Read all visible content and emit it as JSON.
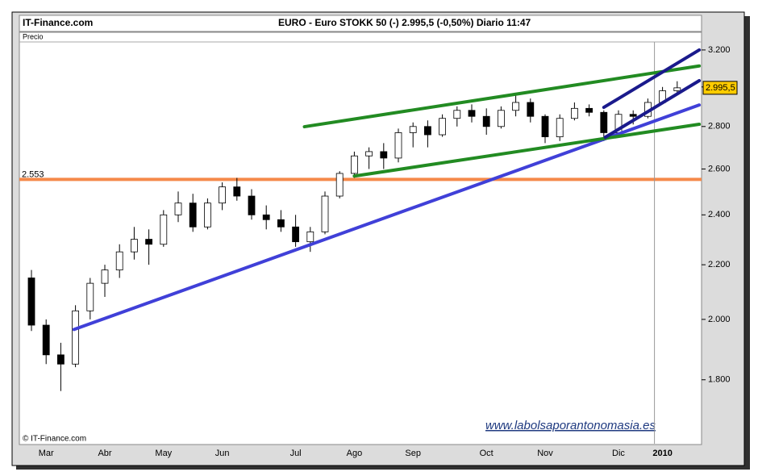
{
  "chart_data": {
    "type": "candlestick",
    "site": "IT-Finance.com",
    "title": "EURO - Euro STOKK 50  (-)   2.995,5 (-0,50%)   Diario  11:47",
    "panel_label": "Precio",
    "copyright": "© IT-Finance.com",
    "watermark": "www.labolsaporantonomasia.es",
    "categories": [
      null,
      "Mar",
      null,
      null,
      null,
      "Abr",
      null,
      null,
      null,
      "May",
      null,
      null,
      null,
      "Jun",
      null,
      null,
      null,
      null,
      "Jul",
      null,
      null,
      null,
      "Ago",
      null,
      null,
      null,
      "Sep",
      null,
      null,
      null,
      null,
      "Oct",
      null,
      null,
      null,
      "Nov",
      null,
      null,
      null,
      null,
      "Dic",
      null,
      null,
      "2010",
      null
    ],
    "open": [
      2150,
      1980,
      1880,
      1850,
      2030,
      2130,
      2180,
      2250,
      2300,
      2280,
      2400,
      2450,
      2350,
      2450,
      2520,
      2480,
      2400,
      2380,
      2350,
      2290,
      2330,
      2480,
      2580,
      2660,
      2680,
      2650,
      2770,
      2800,
      2760,
      2840,
      2880,
      2850,
      2800,
      2880,
      2920,
      2850,
      2750,
      2840,
      2890,
      2870,
      2770,
      2860,
      2850,
      2920,
      2980
    ],
    "high": [
      2180,
      2000,
      1920,
      2050,
      2150,
      2200,
      2280,
      2350,
      2340,
      2420,
      2500,
      2490,
      2470,
      2540,
      2560,
      2510,
      2440,
      2420,
      2400,
      2350,
      2500,
      2590,
      2680,
      2700,
      2720,
      2790,
      2820,
      2830,
      2860,
      2900,
      2910,
      2890,
      2900,
      2960,
      2940,
      2860,
      2860,
      2920,
      2910,
      2880,
      2880,
      2880,
      2940,
      3000,
      3030
    ],
    "low": [
      1960,
      1850,
      1765,
      1840,
      2000,
      2080,
      2150,
      2220,
      2200,
      2270,
      2370,
      2330,
      2340,
      2420,
      2460,
      2380,
      2340,
      2330,
      2270,
      2250,
      2320,
      2470,
      2560,
      2600,
      2600,
      2630,
      2700,
      2700,
      2750,
      2800,
      2820,
      2760,
      2790,
      2850,
      2820,
      2720,
      2730,
      2830,
      2850,
      2730,
      2760,
      2810,
      2840,
      2910,
      2970
    ],
    "close": [
      1980,
      1880,
      1850,
      2030,
      2130,
      2180,
      2250,
      2300,
      2280,
      2400,
      2450,
      2350,
      2450,
      2520,
      2480,
      2400,
      2380,
      2350,
      2290,
      2330,
      2480,
      2580,
      2660,
      2680,
      2650,
      2770,
      2800,
      2760,
      2840,
      2880,
      2850,
      2800,
      2880,
      2920,
      2850,
      2750,
      2840,
      2890,
      2870,
      2770,
      2860,
      2850,
      2920,
      2980,
      2995.5
    ],
    "up_color": "#ffffff",
    "down_color": "#000000",
    "log_scale": true,
    "ylim": [
      1610,
      3245
    ],
    "yticks": [
      {
        "value": 1800,
        "label": "1.800"
      },
      {
        "value": 2000,
        "label": "2.000"
      },
      {
        "value": 2200,
        "label": "2.200"
      },
      {
        "value": 2400,
        "label": "2.400"
      },
      {
        "value": 2600,
        "label": "2.600"
      },
      {
        "value": 2800,
        "label": "2.800"
      },
      {
        "value": 3000,
        "label": "3.000"
      },
      {
        "value": 3200,
        "label": "3.200"
      }
    ],
    "last_price": {
      "value": 2995.5,
      "label": "2.995,5",
      "color": "#ffcc00"
    },
    "level_line": {
      "value": 2553,
      "label": "2.553",
      "color": "#f5894a"
    },
    "trend_lines": [
      {
        "color": "#4040d8",
        "from": [
          2.9,
          1965
        ],
        "to": [
          45.5,
          2907
        ]
      },
      {
        "color": "#228b22",
        "from": [
          18.6,
          2799
        ],
        "to": [
          45.5,
          3112
        ]
      },
      {
        "color": "#228b22",
        "from": [
          22.0,
          2568
        ],
        "to": [
          45.5,
          2811
        ]
      },
      {
        "color": "#1a1a8c",
        "from": [
          39.0,
          2895
        ],
        "to": [
          45.5,
          3200
        ]
      },
      {
        "color": "#1a1a8c",
        "from": [
          39.1,
          2748
        ],
        "to": [
          45.5,
          3033
        ]
      }
    ]
  }
}
